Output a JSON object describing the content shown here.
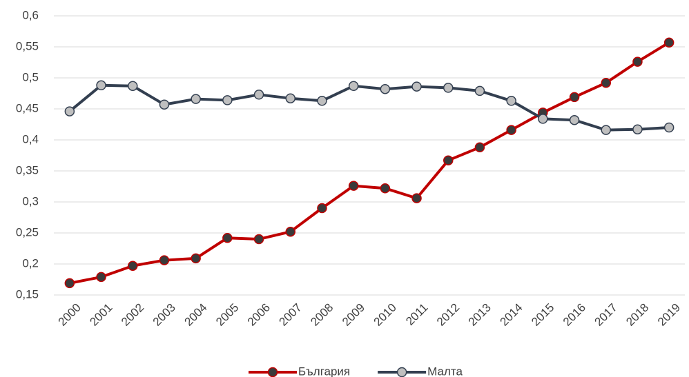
{
  "chart_data": {
    "type": "line",
    "categories": [
      "2000",
      "2001",
      "2002",
      "2003",
      "2004",
      "2005",
      "2006",
      "2007",
      "2008",
      "2009",
      "2010",
      "2011",
      "2012",
      "2013",
      "2014",
      "2015",
      "2016",
      "2017",
      "2018",
      "2019"
    ],
    "series": [
      {
        "name": "България",
        "color": "#c00000",
        "marker_color": "#3a3a3a",
        "values": [
          0.169,
          0.179,
          0.197,
          0.206,
          0.209,
          0.242,
          0.24,
          0.252,
          0.29,
          0.326,
          0.322,
          0.306,
          0.367,
          0.388,
          0.416,
          0.444,
          0.469,
          0.492,
          0.526,
          0.557
        ]
      },
      {
        "name": "Малта",
        "color": "#333f50",
        "marker_color": "#bfbfbf",
        "values": [
          0.446,
          0.488,
          0.487,
          0.457,
          0.466,
          0.464,
          0.473,
          0.467,
          0.463,
          0.487,
          0.482,
          0.486,
          0.484,
          0.479,
          0.463,
          0.434,
          0.432,
          0.416,
          0.417,
          0.42
        ]
      }
    ],
    "ylim": [
      0.15,
      0.6
    ],
    "yticks": [
      {
        "value": 0.15,
        "label": "0,15"
      },
      {
        "value": 0.2,
        "label": "0,2"
      },
      {
        "value": 0.25,
        "label": "0,25"
      },
      {
        "value": 0.3,
        "label": "0,3"
      },
      {
        "value": 0.35,
        "label": "0,35"
      },
      {
        "value": 0.4,
        "label": "0,4"
      },
      {
        "value": 0.45,
        "label": "0,45"
      },
      {
        "value": 0.5,
        "label": "0,5"
      },
      {
        "value": 0.55,
        "label": "0,55"
      },
      {
        "value": 0.6,
        "label": "0,6"
      }
    ],
    "grid": true,
    "legend": "bottom"
  }
}
